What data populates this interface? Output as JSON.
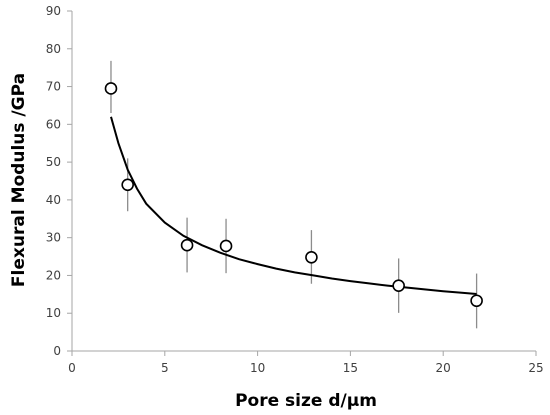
{
  "chart_data": {
    "type": "scatter",
    "title": "",
    "xlabel": "Pore size d/µm",
    "ylabel": "Flexural Modulus /GPa",
    "xlim": [
      0,
      25
    ],
    "ylim": [
      0,
      90
    ],
    "x_ticks": [
      0,
      5,
      10,
      15,
      20,
      25
    ],
    "y_ticks": [
      0,
      10,
      20,
      30,
      40,
      50,
      60,
      70,
      80,
      90
    ],
    "grid": false,
    "legend": "none",
    "series": [
      {
        "marker": "open-circle",
        "x": [
          2.1,
          3.0,
          6.2,
          8.3,
          12.9,
          17.6,
          21.8
        ],
        "y": [
          69.5,
          44.0,
          28.0,
          27.8,
          24.8,
          17.3,
          13.3
        ],
        "error_low": [
          6.5,
          7.0,
          7.2,
          7.2,
          7.0,
          7.2,
          7.3
        ],
        "error_high": [
          7.3,
          7.0,
          7.3,
          7.2,
          7.2,
          7.2,
          7.2
        ]
      }
    ],
    "fit_curve": {
      "style": "solid black line",
      "x": [
        2.1,
        2.5,
        3.0,
        3.5,
        4.0,
        5.0,
        6.0,
        7.0,
        8.0,
        9.0,
        10.0,
        11.0,
        12.0,
        13.0,
        14.0,
        15.0,
        16.0,
        17.0,
        18.0,
        19.0,
        20.0,
        21.0,
        21.8
      ],
      "y": [
        62.0,
        55.0,
        48.0,
        43.0,
        39.0,
        34.0,
        30.5,
        28.0,
        26.0,
        24.3,
        23.0,
        21.8,
        20.8,
        20.0,
        19.2,
        18.5,
        17.9,
        17.3,
        16.8,
        16.3,
        15.8,
        15.4,
        15.1
      ]
    },
    "colors": {
      "axis": "#a6a6a6",
      "marker": "#000000",
      "error_bar": "#8c8c8c",
      "curve": "#000000"
    }
  }
}
